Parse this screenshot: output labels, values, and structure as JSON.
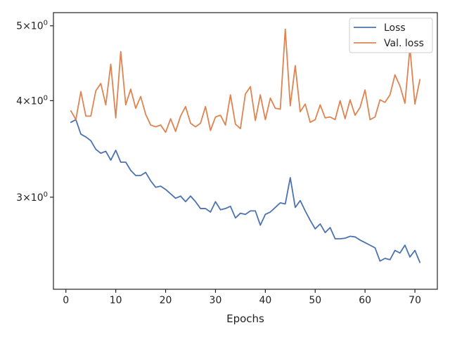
{
  "chart_data": {
    "type": "line",
    "xlabel": "Epochs",
    "ylabel": "",
    "xlim": [
      -2.5,
      74.5
    ],
    "ylim": [
      2.28,
      5.2
    ],
    "yscale": "log",
    "grid": false,
    "legend_position": "top-right",
    "x_ticks": [
      {
        "value": 0,
        "label": "0"
      },
      {
        "value": 10,
        "label": "10"
      },
      {
        "value": 20,
        "label": "20"
      },
      {
        "value": 30,
        "label": "30"
      },
      {
        "value": 40,
        "label": "40"
      },
      {
        "value": 50,
        "label": "50"
      },
      {
        "value": 60,
        "label": "60"
      },
      {
        "value": 70,
        "label": "70"
      }
    ],
    "y_ticks": [
      {
        "value": 3,
        "base": "3",
        "exp": "0"
      },
      {
        "value": 4,
        "base": "4",
        "exp": "0"
      },
      {
        "value": 5,
        "base": "5",
        "exp": "0"
      }
    ],
    "colors": {
      "loss": "#4c72b0",
      "val_loss": "#dd8452"
    },
    "x": [
      1,
      2,
      3,
      4,
      5,
      6,
      7,
      8,
      9,
      10,
      11,
      12,
      13,
      14,
      15,
      16,
      17,
      18,
      19,
      20,
      21,
      22,
      23,
      24,
      25,
      26,
      27,
      28,
      29,
      30,
      31,
      32,
      33,
      34,
      35,
      36,
      37,
      38,
      39,
      40,
      41,
      42,
      43,
      44,
      45,
      46,
      47,
      48,
      49,
      50,
      51,
      52,
      53,
      54,
      55,
      56,
      57,
      58,
      59,
      60,
      61,
      62,
      63,
      64,
      65,
      66,
      67,
      68,
      69,
      70,
      71
    ],
    "series": [
      {
        "name": "Loss",
        "color": "#4c72b0",
        "values": [
          3.75,
          3.78,
          3.62,
          3.59,
          3.55,
          3.46,
          3.42,
          3.44,
          3.35,
          3.45,
          3.33,
          3.33,
          3.25,
          3.2,
          3.2,
          3.23,
          3.15,
          3.09,
          3.1,
          3.07,
          3.03,
          2.99,
          3.01,
          2.96,
          3.01,
          2.96,
          2.9,
          2.9,
          2.87,
          2.96,
          2.89,
          2.9,
          2.92,
          2.82,
          2.86,
          2.85,
          2.88,
          2.88,
          2.76,
          2.85,
          2.87,
          2.91,
          2.95,
          2.94,
          3.18,
          2.91,
          2.97,
          2.88,
          2.8,
          2.73,
          2.77,
          2.7,
          2.74,
          2.65,
          2.65,
          2.655,
          2.67,
          2.665,
          2.64,
          2.62,
          2.6,
          2.58,
          2.48,
          2.5,
          2.49,
          2.56,
          2.54,
          2.6,
          2.51,
          2.56,
          2.47
        ]
      },
      {
        "name": "Val. loss",
        "color": "#dd8452",
        "values": [
          3.88,
          3.78,
          4.11,
          3.82,
          3.82,
          4.12,
          4.21,
          3.95,
          4.46,
          3.8,
          4.63,
          3.95,
          4.14,
          3.91,
          4.05,
          3.84,
          3.72,
          3.7,
          3.72,
          3.64,
          3.79,
          3.65,
          3.82,
          3.93,
          3.74,
          3.7,
          3.74,
          3.93,
          3.66,
          3.81,
          3.83,
          3.72,
          4.07,
          3.73,
          3.68,
          4.08,
          4.17,
          3.77,
          4.07,
          3.78,
          4.03,
          3.91,
          3.9,
          4.95,
          3.94,
          4.44,
          3.87,
          3.96,
          3.75,
          3.78,
          3.95,
          3.8,
          3.81,
          3.78,
          4.0,
          3.79,
          4.01,
          3.83,
          3.92,
          4.13,
          3.78,
          3.81,
          4.01,
          3.98,
          4.07,
          4.32,
          4.18,
          3.97,
          4.68,
          3.96,
          4.26
        ]
      }
    ]
  }
}
